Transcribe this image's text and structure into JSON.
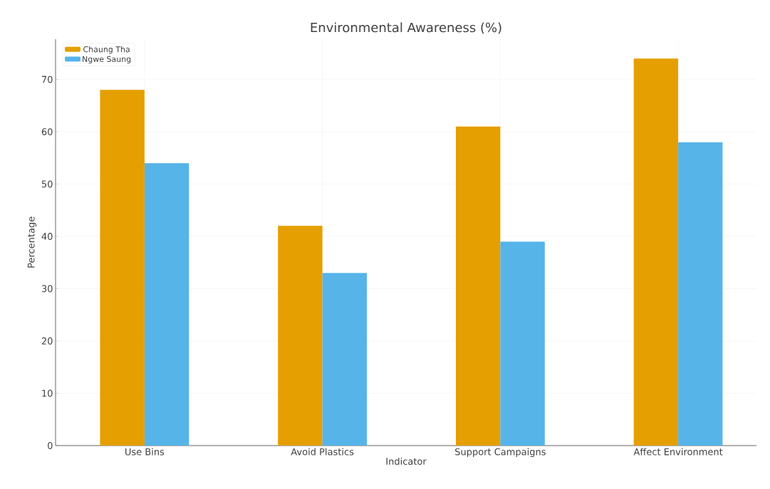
{
  "chart_data": {
    "type": "bar",
    "title": "Environmental Awareness (%)",
    "xlabel": "Indicator",
    "ylabel": "Percentage",
    "categories": [
      "Use Bins",
      "Avoid Plastics",
      "Support Campaigns",
      "Affect Environment"
    ],
    "series": [
      {
        "name": "Chaung Tha",
        "color": "#e69f00",
        "values": [
          68,
          42,
          61,
          74
        ]
      },
      {
        "name": "Ngwe Saung",
        "color": "#56b4e9",
        "values": [
          54,
          33,
          39,
          58
        ]
      }
    ],
    "ylim": [
      0,
      77.7
    ],
    "yticks": [
      0,
      10,
      20,
      30,
      40,
      50,
      60,
      70
    ],
    "grid": true,
    "legend": "top left"
  }
}
